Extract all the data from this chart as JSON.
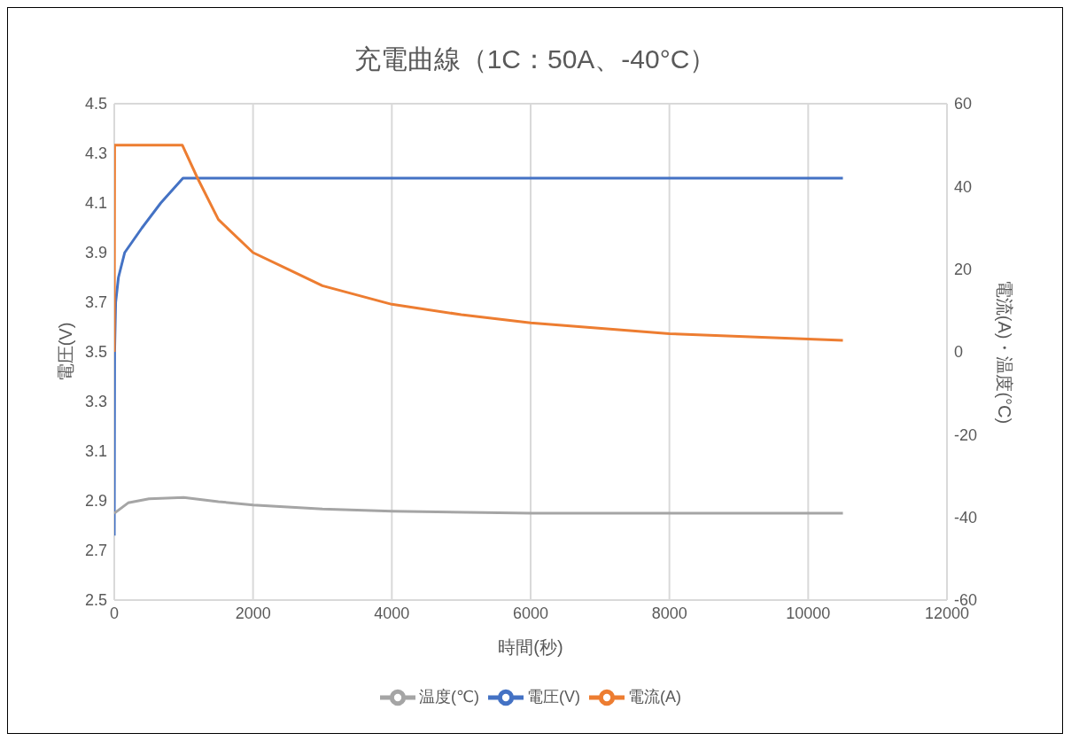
{
  "chart_data": {
    "type": "line",
    "title": "充電曲線（1C：50A、-40°C）",
    "xlabel": "時間(秒)",
    "ylabel": "電圧(V)",
    "y2label": "電流(A)・温度(°C)",
    "xlim": [
      0,
      12000
    ],
    "xticks": [
      0,
      2000,
      4000,
      6000,
      8000,
      10000,
      12000
    ],
    "ylim": [
      2.5,
      4.5
    ],
    "yticks": [
      2.5,
      2.7,
      2.9,
      3.1,
      3.3,
      3.5,
      3.7,
      3.9,
      4.1,
      4.3,
      4.5
    ],
    "y2lim": [
      -60,
      60
    ],
    "y2ticks": [
      -60,
      -40,
      -20,
      0,
      20,
      40,
      60
    ],
    "grid": true,
    "legend": "bottom",
    "marker": "none",
    "line_style": "solid",
    "series": [
      {
        "name": "電圧(V)",
        "color": "#4472c4",
        "x": [
          0,
          5,
          20,
          60,
          150,
          400,
          670,
          990,
          10500
        ],
        "values": [
          2.76,
          3.5,
          3.7,
          3.8,
          3.9,
          4.0,
          4.1,
          4.2,
          4.2
        ]
      },
      {
        "name": "電流(A)",
        "color": "#ed7d31",
        "axis": "y2",
        "x": [
          0,
          5,
          980,
          1200,
          1500,
          2000,
          2500,
          3000,
          4000,
          5000,
          6000,
          8000,
          10500
        ],
        "values": [
          0,
          50,
          50,
          42,
          32,
          24,
          20,
          16,
          11.5,
          9,
          7,
          4.4,
          2.8
        ]
      },
      {
        "name": "温度(℃)",
        "color": "#a5a5a5",
        "axis": "y2",
        "x": [
          0,
          200,
          500,
          1000,
          1500,
          2000,
          3000,
          4000,
          6000,
          8000,
          10500
        ],
        "values": [
          -39,
          -36.5,
          -35.5,
          -35.2,
          -36.2,
          -37,
          -38,
          -38.5,
          -39,
          -39,
          -39
        ]
      }
    ]
  }
}
